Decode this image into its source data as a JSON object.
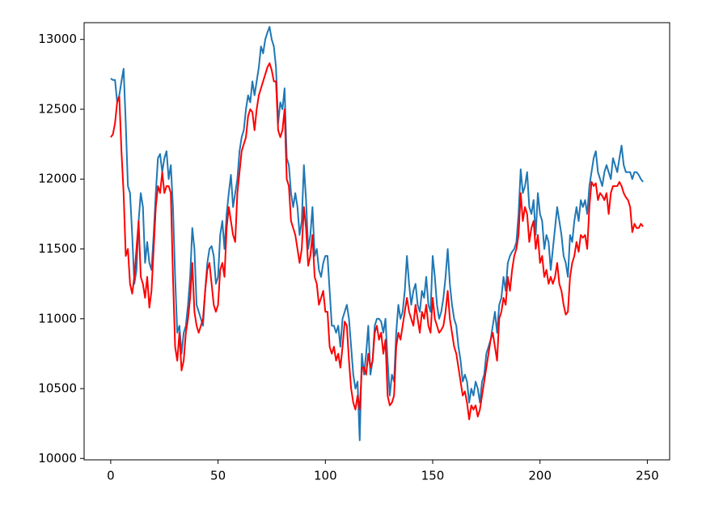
{
  "chart_data": {
    "type": "line",
    "x": [
      0,
      1,
      2,
      3,
      4,
      5,
      6,
      7,
      8,
      9,
      10,
      11,
      12,
      13,
      14,
      15,
      16,
      17,
      18,
      19,
      20,
      21,
      22,
      23,
      24,
      25,
      26,
      27,
      28,
      29,
      30,
      31,
      32,
      33,
      34,
      35,
      36,
      37,
      38,
      39,
      40,
      41,
      42,
      43,
      44,
      45,
      46,
      47,
      48,
      49,
      50,
      51,
      52,
      53,
      54,
      55,
      56,
      57,
      58,
      59,
      60,
      61,
      62,
      63,
      64,
      65,
      66,
      67,
      68,
      69,
      70,
      71,
      72,
      73,
      74,
      75,
      76,
      77,
      78,
      79,
      80,
      81,
      82,
      83,
      84,
      85,
      86,
      87,
      88,
      89,
      90,
      91,
      92,
      93,
      94,
      95,
      96,
      97,
      98,
      99,
      100,
      101,
      102,
      103,
      104,
      105,
      106,
      107,
      108,
      109,
      110,
      111,
      112,
      113,
      114,
      115,
      116,
      117,
      118,
      119,
      120,
      121,
      122,
      123,
      124,
      125,
      126,
      127,
      128,
      129,
      130,
      131,
      132,
      133,
      134,
      135,
      136,
      137,
      138,
      139,
      140,
      141,
      142,
      143,
      144,
      145,
      146,
      147,
      148,
      149,
      150,
      151,
      152,
      153,
      154,
      155,
      156,
      157,
      158,
      159,
      160,
      161,
      162,
      163,
      164,
      165,
      166,
      167,
      168,
      169,
      170,
      171,
      172,
      173,
      174,
      175,
      176,
      177,
      178,
      179,
      180,
      181,
      182,
      183,
      184,
      185,
      186,
      187,
      188,
      189,
      190,
      191,
      192,
      193,
      194,
      195,
      196,
      197,
      198,
      199,
      200,
      201,
      202,
      203,
      204,
      205,
      206,
      207,
      208,
      209,
      210,
      211,
      212,
      213,
      214,
      215,
      216,
      217,
      218,
      219,
      220,
      221,
      222,
      223,
      224,
      225,
      226,
      227,
      228,
      229,
      230,
      231,
      232,
      233,
      234,
      235,
      236,
      237,
      238,
      239,
      240,
      241,
      242,
      243,
      244,
      245,
      246,
      247,
      248
    ],
    "series": [
      {
        "color": "#1f77b4",
        "values": [
          12720,
          12710,
          12710,
          12550,
          12600,
          12700,
          12790,
          12400,
          11950,
          11900,
          11600,
          11250,
          11350,
          11700,
          11900,
          11800,
          11400,
          11550,
          11400,
          11350,
          11600,
          11900,
          12150,
          12180,
          12050,
          12150,
          12200,
          12000,
          12100,
          11800,
          11300,
          10900,
          10950,
          10750,
          10900,
          10950,
          11100,
          11300,
          11650,
          11500,
          11100,
          11050,
          11000,
          10950,
          11200,
          11400,
          11500,
          11520,
          11450,
          11250,
          11300,
          11600,
          11700,
          11500,
          11750,
          11900,
          12030,
          11800,
          11900,
          12000,
          12200,
          12300,
          12350,
          12500,
          12600,
          12550,
          12700,
          12600,
          12700,
          12800,
          12950,
          12900,
          13000,
          13050,
          13090,
          13000,
          12950,
          12800,
          12400,
          12550,
          12500,
          12650,
          12150,
          12100,
          11900,
          11800,
          11900,
          11800,
          11600,
          11700,
          12100,
          11850,
          11500,
          11600,
          11800,
          11450,
          11500,
          11350,
          11300,
          11400,
          11450,
          11450,
          11200,
          10950,
          10950,
          10900,
          10950,
          10800,
          11000,
          11050,
          11100,
          11000,
          10800,
          10600,
          10500,
          10550,
          10130,
          10750,
          10600,
          10750,
          10950,
          10600,
          10700,
          10950,
          11000,
          11000,
          10980,
          10900,
          11000,
          10700,
          10450,
          10600,
          10550,
          10900,
          11100,
          11000,
          11050,
          11200,
          11450,
          11250,
          11100,
          11200,
          11250,
          11100,
          11050,
          11200,
          11150,
          11300,
          11100,
          11050,
          11450,
          11300,
          11100,
          11000,
          11050,
          11150,
          11300,
          11500,
          11250,
          11100,
          11000,
          10950,
          10800,
          10700,
          10550,
          10600,
          10550,
          10400,
          10500,
          10450,
          10550,
          10500,
          10400,
          10550,
          10600,
          10750,
          10800,
          10850,
          10950,
          11050,
          10900,
          11100,
          11150,
          11300,
          11200,
          11400,
          11450,
          11480,
          11500,
          11550,
          11750,
          12070,
          11900,
          11950,
          12050,
          11800,
          11750,
          11850,
          11600,
          11900,
          11750,
          11700,
          11500,
          11600,
          11550,
          11350,
          11500,
          11650,
          11800,
          11700,
          11600,
          11450,
          11400,
          11300,
          11600,
          11550,
          11700,
          11800,
          11700,
          11850,
          11800,
          11850,
          11750,
          11950,
          12050,
          12150,
          12200,
          12050,
          12000,
          11950,
          12050,
          12100,
          12050,
          12000,
          12150,
          12100,
          12050,
          12150,
          12240,
          12100,
          12050,
          12050,
          12050,
          12000,
          12050,
          12050,
          12030,
          12000,
          11980
        ]
      },
      {
        "color": "#ff0000",
        "values": [
          12300,
          12320,
          12400,
          12550,
          12590,
          12200,
          11900,
          11450,
          11500,
          11250,
          11180,
          11300,
          11500,
          11700,
          11300,
          11250,
          11150,
          11300,
          11080,
          11200,
          11500,
          11800,
          11950,
          11900,
          12050,
          11900,
          11950,
          11950,
          11900,
          11300,
          10800,
          10700,
          10900,
          10630,
          10700,
          10900,
          11000,
          11150,
          11400,
          11050,
          10950,
          10900,
          10950,
          11000,
          11200,
          11350,
          11400,
          11250,
          11100,
          11050,
          11100,
          11350,
          11400,
          11300,
          11650,
          11800,
          11700,
          11600,
          11550,
          11900,
          12050,
          12200,
          12250,
          12300,
          12450,
          12500,
          12480,
          12350,
          12500,
          12600,
          12650,
          12700,
          12750,
          12800,
          12830,
          12780,
          12700,
          12700,
          12350,
          12300,
          12350,
          12500,
          12000,
          11950,
          11700,
          11650,
          11600,
          11500,
          11400,
          11500,
          11800,
          11650,
          11380,
          11450,
          11600,
          11300,
          11250,
          11100,
          11150,
          11200,
          11050,
          11050,
          10800,
          10750,
          10800,
          10700,
          10750,
          10650,
          10800,
          10980,
          10950,
          10700,
          10500,
          10400,
          10350,
          10450,
          10350,
          10650,
          10650,
          10600,
          10750,
          10650,
          10700,
          10900,
          10950,
          10850,
          10900,
          10750,
          10850,
          10450,
          10380,
          10400,
          10450,
          10800,
          10900,
          10850,
          10950,
          11050,
          11150,
          11050,
          11000,
          10950,
          11100,
          11000,
          10900,
          11050,
          11000,
          11100,
          10950,
          10900,
          11150,
          11000,
          10950,
          10900,
          10920,
          10950,
          11050,
          11200,
          11000,
          10900,
          10800,
          10750,
          10650,
          10550,
          10450,
          10480,
          10400,
          10280,
          10380,
          10350,
          10380,
          10300,
          10350,
          10450,
          10550,
          10650,
          10750,
          10850,
          10900,
          10800,
          10700,
          11000,
          11050,
          11150,
          11100,
          11300,
          11200,
          11350,
          11450,
          11500,
          11600,
          11900,
          11700,
          11800,
          11750,
          11550,
          11650,
          11700,
          11500,
          11600,
          11400,
          11450,
          11300,
          11350,
          11250,
          11300,
          11250,
          11300,
          11400,
          11250,
          11200,
          11100,
          11030,
          11050,
          11300,
          11400,
          11450,
          11550,
          11480,
          11600,
          11580,
          11600,
          11500,
          11800,
          11980,
          11950,
          11970,
          11850,
          11900,
          11880,
          11850,
          11900,
          11750,
          11900,
          11950,
          11950,
          11950,
          11980,
          11950,
          11900,
          11870,
          11850,
          11800,
          11620,
          11680,
          11650,
          11650,
          11680,
          11660
        ]
      }
    ],
    "xlim": [
      -12.4,
      260.4
    ],
    "ylim": [
      9990,
      13120
    ],
    "xticks": [
      0,
      50,
      100,
      150,
      200,
      250
    ],
    "yticks": [
      10000,
      10500,
      11000,
      11500,
      12000,
      12500,
      13000
    ],
    "grid": false
  }
}
